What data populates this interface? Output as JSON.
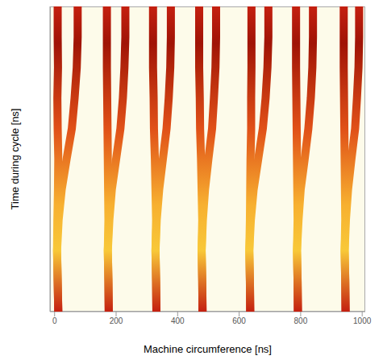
{
  "chart_data": {
    "type": "line",
    "xlabel": "Machine circumference [ns]",
    "ylabel": "Time during cycle [ns]",
    "xlim": [
      -15,
      1010
    ],
    "xticks": [
      0,
      200,
      400,
      600,
      800,
      1000
    ],
    "ylim": [
      0,
      100
    ],
    "tick_labels": "x",
    "grid": false,
    "y": [
      0,
      10,
      20,
      30,
      40,
      50,
      60,
      70,
      80,
      90,
      100
    ],
    "series": [
      {
        "color": "#c42010",
        "x": [
          12,
          10,
          8,
          9,
          11,
          12,
          10,
          9,
          11,
          10,
          10
        ]
      },
      {
        "color": "#c42010",
        "x": [
          12,
          10,
          8,
          13,
          23,
          39,
          56,
          65,
          72,
          75,
          75
        ]
      },
      {
        "color": "#c42010",
        "x": [
          176,
          175,
          173,
          175,
          174,
          173,
          172,
          171,
          170,
          170,
          170
        ]
      },
      {
        "color": "#c42010",
        "x": [
          176,
          175,
          173,
          178,
          186,
          200,
          214,
          222,
          227,
          230,
          230
        ]
      },
      {
        "color": "#c42010",
        "x": [
          331,
          330,
          328,
          330,
          328,
          326,
          323,
          322,
          320,
          320,
          320
        ]
      },
      {
        "color": "#c42010",
        "x": [
          331,
          330,
          328,
          332,
          340,
          352,
          364,
          371,
          376,
          378,
          378
        ]
      },
      {
        "color": "#c42010",
        "x": [
          481,
          480,
          478,
          480,
          478,
          476,
          473,
          472,
          470,
          470,
          470
        ]
      },
      {
        "color": "#c42010",
        "x": [
          481,
          480,
          478,
          482,
          489,
          500,
          512,
          518,
          523,
          525,
          525
        ]
      },
      {
        "color": "#c42010",
        "x": [
          636,
          635,
          633,
          635,
          636,
          637,
          639,
          639,
          640,
          640,
          640
        ]
      },
      {
        "color": "#c42010",
        "x": [
          636,
          635,
          633,
          638,
          647,
          662,
          677,
          686,
          692,
          695,
          695
        ]
      },
      {
        "color": "#c42010",
        "x": [
          791,
          790,
          788,
          790,
          789,
          788,
          787,
          786,
          785,
          785,
          785
        ]
      },
      {
        "color": "#c42010",
        "x": [
          791,
          790,
          788,
          793,
          800,
          813,
          825,
          833,
          838,
          840,
          840
        ]
      },
      {
        "color": "#c42010",
        "x": [
          946,
          945,
          943,
          945,
          944,
          943,
          942,
          941,
          940,
          940,
          940
        ]
      },
      {
        "color": "#c42010",
        "x": [
          946,
          945,
          943,
          947,
          954,
          965,
          977,
          983,
          988,
          990,
          990
        ]
      }
    ]
  }
}
